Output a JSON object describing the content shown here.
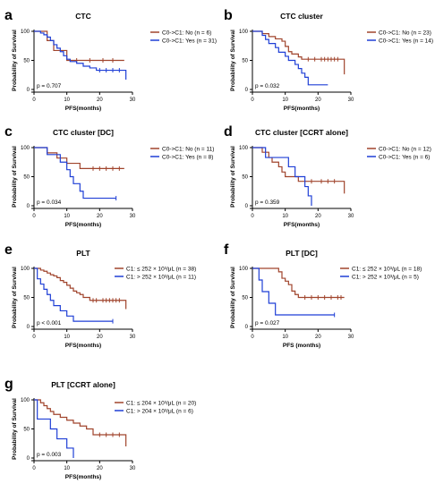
{
  "chart_data": [
    {
      "type": "line",
      "letter": "a",
      "title": "CTC",
      "ylabel": "Probability of Survival",
      "xlabel": "PFS(months)",
      "xlim": [
        0,
        30
      ],
      "ylim": [
        0,
        100
      ],
      "xticks": [
        "0",
        "10",
        "20",
        "30"
      ],
      "yticks": [
        "0",
        "50",
        "100"
      ],
      "pvalue": "p = 0.707",
      "legend_position": "top-right",
      "series": [
        {
          "name": "C0->C1: No (n = 6)",
          "color": "#a0442c",
          "x": [
            0,
            2,
            4,
            6,
            9,
            10,
            12,
            26,
            27.5
          ],
          "y": [
            100,
            100,
            84,
            67,
            67,
            50,
            50,
            50,
            50
          ],
          "censor_x": [
            13,
            17,
            21,
            24
          ]
        },
        {
          "name": "C0->C1: Yes (n = 31)",
          "color": "#1f3fd6",
          "x": [
            0,
            2,
            3,
            4,
            5,
            6,
            7,
            8,
            9,
            10,
            11,
            13,
            15,
            17,
            19,
            27,
            28
          ],
          "y": [
            100,
            97,
            94,
            90,
            84,
            77,
            71,
            65,
            58,
            52,
            48,
            45,
            40,
            37,
            33,
            33,
            17
          ],
          "censor_x": [
            20,
            22,
            24,
            26
          ]
        }
      ]
    },
    {
      "type": "line",
      "letter": "b",
      "title": "CTC cluster",
      "ylabel": "Probability of Survival",
      "xlabel": "PFS(months)",
      "xlim": [
        0,
        30
      ],
      "ylim": [
        0,
        100
      ],
      "xticks": [
        "0",
        "10",
        "20",
        "30"
      ],
      "yticks": [
        "0",
        "50",
        "100"
      ],
      "pvalue": "p = 0.032",
      "legend_position": "top-right",
      "series": [
        {
          "name": "C0->C1: No (n = 23)",
          "color": "#a0442c",
          "x": [
            0,
            3,
            5,
            7,
            9,
            10,
            11,
            12,
            14,
            15,
            27.5,
            28
          ],
          "y": [
            100,
            96,
            91,
            87,
            83,
            74,
            65,
            61,
            56,
            52,
            52,
            26
          ],
          "censor_x": [
            17,
            19,
            21,
            22,
            23,
            24,
            25,
            26
          ]
        },
        {
          "name": "C0->C1: Yes (n = 14)",
          "color": "#1f3fd6",
          "x": [
            0,
            3,
            4,
            5,
            7,
            8,
            10,
            11,
            13,
            14,
            15,
            16,
            17,
            23
          ],
          "y": [
            100,
            93,
            86,
            79,
            72,
            64,
            57,
            50,
            43,
            36,
            28,
            21,
            8,
            8
          ],
          "censor_x": []
        }
      ]
    },
    {
      "type": "line",
      "letter": "c",
      "title": "CTC cluster [DC]",
      "ylabel": "Probability of Survival",
      "xlabel": "PFS(months)",
      "xlim": [
        0,
        30
      ],
      "ylim": [
        0,
        100
      ],
      "xticks": [
        "0",
        "10",
        "20",
        "30"
      ],
      "yticks": [
        "0",
        "50",
        "100"
      ],
      "pvalue": "p = 0.034",
      "legend_position": "top-right",
      "series": [
        {
          "name": "C0->C1: No (n = 11)",
          "color": "#a0442c",
          "x": [
            0,
            4,
            7,
            9,
            10,
            12,
            14,
            16,
            27.5
          ],
          "y": [
            100,
            91,
            82,
            82,
            73,
            73,
            64,
            64,
            64
          ],
          "censor_x": [
            18,
            20,
            22,
            24,
            26
          ]
        },
        {
          "name": "C0->C1: Yes (n = 8)",
          "color": "#1f3fd6",
          "x": [
            0,
            4,
            8,
            10,
            11,
            12,
            14,
            15,
            25
          ],
          "y": [
            100,
            88,
            75,
            62,
            50,
            38,
            25,
            13,
            13
          ],
          "censor_x": [
            25
          ]
        }
      ]
    },
    {
      "type": "line",
      "letter": "d",
      "title": "CTC cluster [CCRT alone]",
      "ylabel": "Probability of Survival",
      "xlabel": "PFS(months)",
      "xlim": [
        0,
        30
      ],
      "ylim": [
        0,
        100
      ],
      "xticks": [
        "0",
        "10",
        "20",
        "30"
      ],
      "yticks": [
        "0",
        "50",
        "100"
      ],
      "pvalue": "p = 0.359",
      "legend_position": "top-right",
      "series": [
        {
          "name": "C0->C1: No (n = 12)",
          "color": "#a0442c",
          "x": [
            0,
            3,
            5,
            6,
            8,
            9,
            10,
            11,
            14,
            16,
            27,
            28
          ],
          "y": [
            100,
            92,
            83,
            75,
            67,
            58,
            50,
            50,
            42,
            42,
            42,
            21
          ],
          "censor_x": [
            18,
            21,
            23,
            25
          ]
        },
        {
          "name": "C0->C1: Yes (n = 6)",
          "color": "#1f3fd6",
          "x": [
            0,
            4,
            5,
            11,
            13,
            16,
            17,
            18
          ],
          "y": [
            100,
            83,
            83,
            67,
            50,
            33,
            17,
            0
          ],
          "censor_x": []
        }
      ]
    },
    {
      "type": "line",
      "letter": "e",
      "title": "PLT",
      "ylabel": "Probability of Survival",
      "xlabel": "PFS(months)",
      "xlim": [
        0,
        30
      ],
      "ylim": [
        0,
        100
      ],
      "xticks": [
        "0",
        "10",
        "20",
        "30"
      ],
      "yticks": [
        "0",
        "50",
        "100"
      ],
      "pvalue": "p < 0.001",
      "legend_position": "top-right",
      "series": [
        {
          "name": "C1: ≤ 252 × 10³/μL (n = 38)",
          "color": "#a0442c",
          "x": [
            0,
            2,
            3,
            4,
            5,
            6,
            7,
            8,
            9,
            10,
            11,
            12,
            13,
            14,
            15,
            17,
            27.5,
            28
          ],
          "y": [
            100,
            97,
            95,
            92,
            89,
            87,
            84,
            79,
            76,
            71,
            66,
            61,
            58,
            55,
            50,
            45,
            45,
            30
          ],
          "censor_x": [
            18,
            19,
            21,
            22,
            23,
            24,
            25,
            26
          ]
        },
        {
          "name": "C1: > 252 × 10³/μL (n = 11)",
          "color": "#1f3fd6",
          "x": [
            0,
            1,
            2,
            3,
            4,
            5,
            6,
            8,
            10,
            12,
            24
          ],
          "y": [
            100,
            82,
            73,
            64,
            55,
            45,
            36,
            27,
            18,
            9,
            9
          ],
          "censor_x": [
            24
          ]
        }
      ]
    },
    {
      "type": "line",
      "letter": "f",
      "title": "PLT [DC]",
      "ylabel": "Probability of Survival",
      "xlabel": "PFS (months)",
      "xlim": [
        0,
        30
      ],
      "ylim": [
        0,
        100
      ],
      "xticks": [
        "0",
        "10",
        "20",
        "30"
      ],
      "yticks": [
        "0",
        "50",
        "100"
      ],
      "pvalue": "p = 0.027",
      "legend_position": "top-right",
      "series": [
        {
          "name": "C1: ≤ 252 × 10³/μL (n = 18)",
          "color": "#a0442c",
          "x": [
            0,
            8,
            9,
            10,
            11,
            12,
            13,
            14,
            28
          ],
          "y": [
            100,
            94,
            83,
            78,
            72,
            61,
            55,
            50,
            50
          ],
          "censor_x": [
            16,
            18,
            20,
            22,
            24,
            26,
            27
          ]
        },
        {
          "name": "C1: > 252 × 10³/μL (n = 5)",
          "color": "#1f3fd6",
          "x": [
            0,
            2,
            3,
            5,
            7,
            25
          ],
          "y": [
            100,
            80,
            60,
            40,
            20,
            20
          ],
          "censor_x": [
            25
          ]
        }
      ]
    },
    {
      "type": "line",
      "letter": "g",
      "title": "PLT [CCRT alone]",
      "ylabel": "Probability of Survival",
      "xlabel": "PFS(months)",
      "xlim": [
        0,
        30
      ],
      "ylim": [
        0,
        100
      ],
      "xticks": [
        "0",
        "10",
        "20",
        "30"
      ],
      "yticks": [
        "0",
        "50",
        "100"
      ],
      "pvalue": "p = 0.003",
      "legend_position": "top-right",
      "series": [
        {
          "name": "C1: ≤ 204 × 10³/μL (n = 20)",
          "color": "#a0442c",
          "x": [
            0,
            2,
            3,
            4,
            5,
            6,
            8,
            10,
            12,
            14,
            16,
            18,
            27.5,
            28
          ],
          "y": [
            100,
            95,
            90,
            85,
            80,
            75,
            70,
            65,
            60,
            55,
            50,
            40,
            40,
            20
          ],
          "censor_x": [
            20,
            22,
            24,
            26
          ]
        },
        {
          "name": "C1: > 204 × 10³/μL (n = 6)",
          "color": "#1f3fd6",
          "x": [
            0,
            1,
            5,
            7,
            10,
            12
          ],
          "y": [
            100,
            67,
            50,
            33,
            17,
            0
          ],
          "censor_x": []
        }
      ]
    }
  ]
}
